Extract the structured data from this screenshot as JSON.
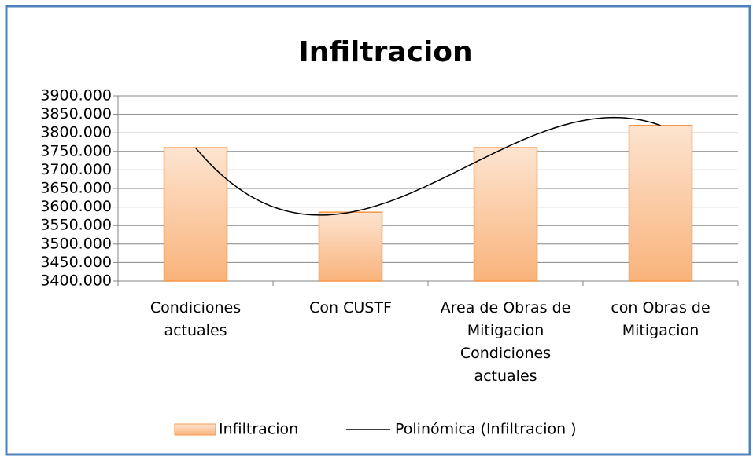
{
  "chart_data": {
    "type": "bar",
    "title": "Infiltracion",
    "categories": [
      "Condiciones actuales",
      "Con CUSTF",
      "Area de Obras de Mitigacion Condiciones actuales",
      "con Obras de Mitigacion"
    ],
    "series": [
      {
        "name": "Infiltracion",
        "color": "#f79646",
        "values": [
          3760,
          3586,
          3760,
          3820
        ]
      },
      {
        "name": "Polinómica (Infiltracion )",
        "color": "#000000",
        "trendline": "polynomial",
        "order": 3
      }
    ],
    "ylim": [
      3400,
      3900
    ],
    "yticks": [
      {
        "value": 3400,
        "label": "3400.000"
      },
      {
        "value": 3450,
        "label": "3450.000"
      },
      {
        "value": 3500,
        "label": "3500.000"
      },
      {
        "value": 3550,
        "label": "3550.000"
      },
      {
        "value": 3600,
        "label": "3600.000"
      },
      {
        "value": 3650,
        "label": "3650.000"
      },
      {
        "value": 3700,
        "label": "3700.000"
      },
      {
        "value": 3750,
        "label": "3750.000"
      },
      {
        "value": 3800,
        "label": "3800.000"
      },
      {
        "value": 3850,
        "label": "3850.000"
      },
      {
        "value": 3900,
        "label": "3900.000"
      }
    ],
    "grid": true,
    "legend": "bottom"
  }
}
